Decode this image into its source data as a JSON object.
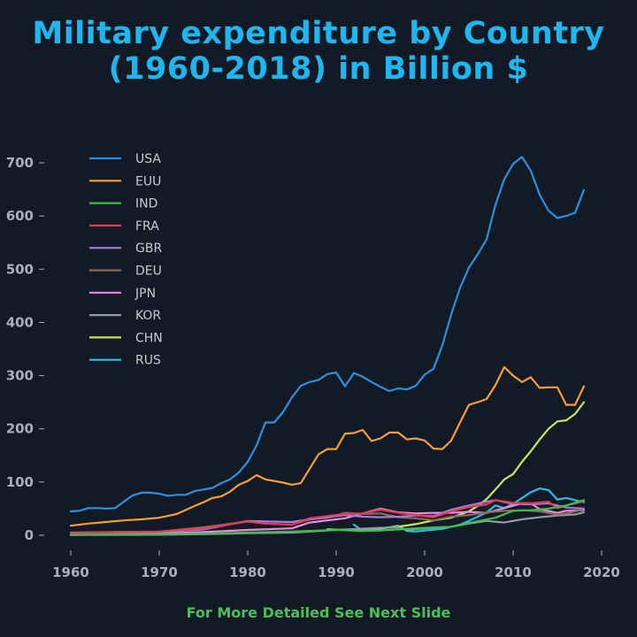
{
  "title_line1": "Military expenditure by Country",
  "title_line2": "(1960-2018) in Billion $",
  "footer": "For More Detailed See Next Slide",
  "chart_data": {
    "type": "line",
    "title": "Military expenditure by Country (1960-2018) in Billion $",
    "xlabel": "",
    "ylabel": "",
    "xlim": [
      1960,
      2020
    ],
    "ylim": [
      0,
      720
    ],
    "xticks": [
      1960,
      1970,
      1980,
      1990,
      2000,
      2010,
      2020
    ],
    "yticks": [
      0,
      100,
      200,
      300,
      400,
      500,
      600,
      700
    ],
    "legend_position": "top-left",
    "series": [
      {
        "name": "USA",
        "color": "#2e8fe0",
        "points": [
          [
            1960,
            45
          ],
          [
            1961,
            46
          ],
          [
            1962,
            51
          ],
          [
            1963,
            51
          ],
          [
            1964,
            50
          ],
          [
            1965,
            51
          ],
          [
            1966,
            63
          ],
          [
            1967,
            75
          ],
          [
            1968,
            80
          ],
          [
            1969,
            80
          ],
          [
            1970,
            78
          ],
          [
            1971,
            74
          ],
          [
            1972,
            76
          ],
          [
            1973,
            76
          ],
          [
            1974,
            83
          ],
          [
            1975,
            86
          ],
          [
            1976,
            89
          ],
          [
            1977,
            98
          ],
          [
            1978,
            105
          ],
          [
            1979,
            118
          ],
          [
            1980,
            138
          ],
          [
            1981,
            169
          ],
          [
            1982,
            212
          ],
          [
            1983,
            212
          ],
          [
            1984,
            232
          ],
          [
            1985,
            259
          ],
          [
            1986,
            281
          ],
          [
            1987,
            288
          ],
          [
            1988,
            292
          ],
          [
            1989,
            303
          ],
          [
            1990,
            306
          ],
          [
            1991,
            280
          ],
          [
            1992,
            305
          ],
          [
            1993,
            298
          ],
          [
            1994,
            288
          ],
          [
            1995,
            279
          ],
          [
            1996,
            271
          ],
          [
            1997,
            276
          ],
          [
            1998,
            274
          ],
          [
            1999,
            281
          ],
          [
            2000,
            302
          ],
          [
            2001,
            313
          ],
          [
            2002,
            357
          ],
          [
            2003,
            415
          ],
          [
            2004,
            465
          ],
          [
            2005,
            503
          ],
          [
            2006,
            528
          ],
          [
            2007,
            556
          ],
          [
            2008,
            621
          ],
          [
            2009,
            669
          ],
          [
            2010,
            698
          ],
          [
            2011,
            711
          ],
          [
            2012,
            685
          ],
          [
            2013,
            640
          ],
          [
            2014,
            610
          ],
          [
            2015,
            596
          ],
          [
            2016,
            600
          ],
          [
            2017,
            606
          ],
          [
            2018,
            649
          ]
        ]
      },
      {
        "name": "EUU",
        "color": "#f79c3a",
        "points": [
          [
            1960,
            18
          ],
          [
            1962,
            22
          ],
          [
            1964,
            25
          ],
          [
            1966,
            28
          ],
          [
            1968,
            30
          ],
          [
            1970,
            33
          ],
          [
            1972,
            40
          ],
          [
            1974,
            55
          ],
          [
            1975,
            62
          ],
          [
            1976,
            70
          ],
          [
            1977,
            73
          ],
          [
            1978,
            82
          ],
          [
            1979,
            95
          ],
          [
            1980,
            102
          ],
          [
            1981,
            113
          ],
          [
            1982,
            105
          ],
          [
            1983,
            102
          ],
          [
            1984,
            99
          ],
          [
            1985,
            95
          ],
          [
            1986,
            98
          ],
          [
            1987,
            125
          ],
          [
            1988,
            152
          ],
          [
            1989,
            162
          ],
          [
            1990,
            162
          ],
          [
            1991,
            191
          ],
          [
            1992,
            192
          ],
          [
            1993,
            198
          ],
          [
            1994,
            177
          ],
          [
            1995,
            182
          ],
          [
            1996,
            193
          ],
          [
            1997,
            193
          ],
          [
            1998,
            180
          ],
          [
            1999,
            182
          ],
          [
            2000,
            178
          ],
          [
            2001,
            163
          ],
          [
            2002,
            162
          ],
          [
            2003,
            178
          ],
          [
            2004,
            212
          ],
          [
            2005,
            245
          ],
          [
            2006,
            250
          ],
          [
            2007,
            256
          ],
          [
            2008,
            282
          ],
          [
            2009,
            316
          ],
          [
            2010,
            300
          ],
          [
            2011,
            288
          ],
          [
            2012,
            297
          ],
          [
            2013,
            277
          ],
          [
            2014,
            278
          ],
          [
            2015,
            278
          ],
          [
            2016,
            245
          ],
          [
            2017,
            245
          ],
          [
            2018,
            280
          ]
        ]
      },
      {
        "name": "IND",
        "color": "#3cbf4a",
        "points": [
          [
            1960,
            0.7
          ],
          [
            1965,
            2
          ],
          [
            1970,
            2
          ],
          [
            1975,
            3
          ],
          [
            1980,
            5
          ],
          [
            1985,
            7
          ],
          [
            1990,
            10
          ],
          [
            1993,
            8
          ],
          [
            1995,
            9
          ],
          [
            2000,
            14
          ],
          [
            2003,
            16
          ],
          [
            2005,
            23
          ],
          [
            2008,
            33
          ],
          [
            2010,
            46
          ],
          [
            2012,
            47
          ],
          [
            2014,
            50
          ],
          [
            2016,
            56
          ],
          [
            2018,
            66
          ]
        ]
      },
      {
        "name": "FRA",
        "color": "#e63a4f",
        "points": [
          [
            1960,
            4
          ],
          [
            1965,
            6
          ],
          [
            1970,
            7
          ],
          [
            1975,
            13
          ],
          [
            1980,
            26
          ],
          [
            1982,
            22
          ],
          [
            1985,
            20
          ],
          [
            1987,
            32
          ],
          [
            1989,
            36
          ],
          [
            1991,
            40
          ],
          [
            1993,
            41
          ],
          [
            1995,
            48
          ],
          [
            1997,
            42
          ],
          [
            1999,
            38
          ],
          [
            2001,
            34
          ],
          [
            2003,
            45
          ],
          [
            2005,
            53
          ],
          [
            2007,
            58
          ],
          [
            2008,
            66
          ],
          [
            2010,
            61
          ],
          [
            2012,
            60
          ],
          [
            2014,
            63
          ],
          [
            2015,
            51
          ],
          [
            2016,
            56
          ],
          [
            2018,
            64
          ]
        ]
      },
      {
        "name": "GBR",
        "color": "#a07ce0",
        "points": [
          [
            1960,
            5
          ],
          [
            1965,
            6
          ],
          [
            1970,
            6
          ],
          [
            1975,
            11
          ],
          [
            1980,
            27
          ],
          [
            1982,
            26
          ],
          [
            1985,
            25
          ],
          [
            1987,
            30
          ],
          [
            1989,
            34
          ],
          [
            1991,
            38
          ],
          [
            1993,
            35
          ],
          [
            1995,
            34
          ],
          [
            1997,
            35
          ],
          [
            1999,
            37
          ],
          [
            2001,
            36
          ],
          [
            2003,
            48
          ],
          [
            2005,
            56
          ],
          [
            2007,
            63
          ],
          [
            2008,
            66
          ],
          [
            2010,
            59
          ],
          [
            2012,
            58
          ],
          [
            2014,
            60
          ],
          [
            2016,
            52
          ],
          [
            2018,
            50
          ]
        ]
      },
      {
        "name": "DEU",
        "color": "#8c6d5a",
        "points": [
          [
            1960,
            4
          ],
          [
            1965,
            5
          ],
          [
            1970,
            7
          ],
          [
            1975,
            15
          ],
          [
            1980,
            26
          ],
          [
            1982,
            22
          ],
          [
            1985,
            20
          ],
          [
            1987,
            30
          ],
          [
            1989,
            33
          ],
          [
            1991,
            42
          ],
          [
            1993,
            40
          ],
          [
            1995,
            41
          ],
          [
            1997,
            34
          ],
          [
            1999,
            32
          ],
          [
            2001,
            28
          ],
          [
            2003,
            35
          ],
          [
            2005,
            38
          ],
          [
            2007,
            43
          ],
          [
            2009,
            46
          ],
          [
            2011,
            47
          ],
          [
            2013,
            45
          ],
          [
            2015,
            39
          ],
          [
            2016,
            41
          ],
          [
            2018,
            49
          ]
        ]
      },
      {
        "name": "JPN",
        "color": "#f08adf",
        "points": [
          [
            1960,
            1
          ],
          [
            1965,
            2
          ],
          [
            1970,
            3
          ],
          [
            1975,
            6
          ],
          [
            1980,
            10
          ],
          [
            1985,
            13
          ],
          [
            1987,
            24
          ],
          [
            1989,
            28
          ],
          [
            1991,
            32
          ],
          [
            1993,
            41
          ],
          [
            1995,
            50
          ],
          [
            1997,
            43
          ],
          [
            1999,
            41
          ],
          [
            2001,
            42
          ],
          [
            2003,
            42
          ],
          [
            2005,
            44
          ],
          [
            2007,
            42
          ],
          [
            2009,
            51
          ],
          [
            2011,
            60
          ],
          [
            2012,
            60
          ],
          [
            2013,
            49
          ],
          [
            2015,
            42
          ],
          [
            2016,
            46
          ],
          [
            2018,
            47
          ]
        ]
      },
      {
        "name": "KOR",
        "color": "#8f9aa5",
        "points": [
          [
            1960,
            0.5
          ],
          [
            1965,
            0.8
          ],
          [
            1970,
            1
          ],
          [
            1975,
            2
          ],
          [
            1980,
            4
          ],
          [
            1985,
            5
          ],
          [
            1990,
            10
          ],
          [
            1995,
            14
          ],
          [
            1997,
            15
          ],
          [
            1998,
            10
          ],
          [
            2000,
            13
          ],
          [
            2003,
            16
          ],
          [
            2005,
            22
          ],
          [
            2007,
            27
          ],
          [
            2009,
            24
          ],
          [
            2011,
            30
          ],
          [
            2013,
            34
          ],
          [
            2015,
            37
          ],
          [
            2017,
            39
          ],
          [
            2018,
            43
          ]
        ]
      },
      {
        "name": "CHN",
        "color": "#c6e85c",
        "points": [
          [
            1989,
            11
          ],
          [
            1991,
            10
          ],
          [
            1993,
            12
          ],
          [
            1995,
            13
          ],
          [
            1997,
            16
          ],
          [
            1999,
            21
          ],
          [
            2001,
            28
          ],
          [
            2003,
            33
          ],
          [
            2005,
            45
          ],
          [
            2006,
            55
          ],
          [
            2007,
            68
          ],
          [
            2008,
            86
          ],
          [
            2009,
            105
          ],
          [
            2010,
            115
          ],
          [
            2011,
            138
          ],
          [
            2012,
            158
          ],
          [
            2013,
            180
          ],
          [
            2014,
            200
          ],
          [
            2015,
            214
          ],
          [
            2016,
            216
          ],
          [
            2017,
            228
          ],
          [
            2018,
            250
          ]
        ]
      },
      {
        "name": "RUS",
        "color": "#2dbce8",
        "points": [
          [
            1992,
            20
          ],
          [
            1993,
            8
          ],
          [
            1995,
            12
          ],
          [
            1996,
            15
          ],
          [
            1997,
            18
          ],
          [
            1998,
            8
          ],
          [
            1999,
            7
          ],
          [
            2000,
            9
          ],
          [
            2002,
            12
          ],
          [
            2004,
            20
          ],
          [
            2005,
            27
          ],
          [
            2006,
            35
          ],
          [
            2007,
            43
          ],
          [
            2008,
            56
          ],
          [
            2009,
            51
          ],
          [
            2010,
            59
          ],
          [
            2011,
            70
          ],
          [
            2012,
            81
          ],
          [
            2013,
            88
          ],
          [
            2014,
            85
          ],
          [
            2015,
            67
          ],
          [
            2016,
            70
          ],
          [
            2017,
            66
          ],
          [
            2018,
            62
          ]
        ]
      }
    ]
  }
}
